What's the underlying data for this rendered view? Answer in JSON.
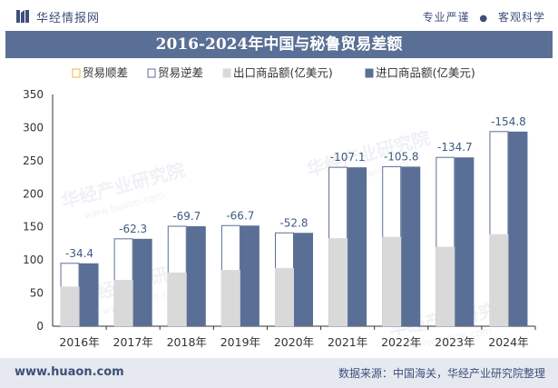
{
  "header": {
    "brand": "华经情报网",
    "slogan_left": "专业严谨",
    "slogan_sep": "●",
    "slogan_right": "客观科学"
  },
  "watermark": {
    "text": "华经产业研究院",
    "url": "www.huaon.com"
  },
  "chart_data": {
    "type": "bar",
    "title": "2016-2024年中国与秘鲁贸易差额",
    "categories": [
      "2016年",
      "2017年",
      "2018年",
      "2019年",
      "2020年",
      "2021年",
      "2022年",
      "2023年",
      "2024年"
    ],
    "series": [
      {
        "name": "贸易顺差",
        "values": [
          null,
          null,
          null,
          null,
          null,
          null,
          null,
          null,
          null
        ]
      },
      {
        "name": "贸易逆差",
        "values": [
          -34.4,
          -62.3,
          -69.7,
          -66.7,
          -52.8,
          -107.1,
          -105.8,
          -134.7,
          -154.8
        ]
      },
      {
        "name": "出口商品额(亿美元)",
        "values": [
          60,
          70,
          81,
          85,
          88,
          133,
          135,
          120,
          139
        ]
      },
      {
        "name": "进口商品额(亿美元)",
        "values": [
          95,
          132,
          151,
          152,
          141,
          240,
          241,
          255,
          294
        ]
      }
    ],
    "data_labels": [
      "-34.4",
      "-62.3",
      "-69.7",
      "-66.7",
      "-52.8",
      "-107.1",
      "-105.8",
      "-134.7",
      "-154.8"
    ],
    "ylim": [
      0,
      350
    ],
    "yticks": [
      "0",
      "50",
      "100",
      "150",
      "200",
      "250",
      "300",
      "350"
    ],
    "xlabel": "",
    "ylabel": "",
    "grid": false,
    "legend_position": "top",
    "colors": {
      "surplus": "#f0b43c",
      "deficit": "#5a6f95",
      "export": "#d9d9d9",
      "import": "#5a6f95",
      "label": "#3d5a80"
    }
  },
  "footer": {
    "website": "www.huaon.com",
    "source": "数据来源：中国海关，华经产业研究院整理"
  }
}
